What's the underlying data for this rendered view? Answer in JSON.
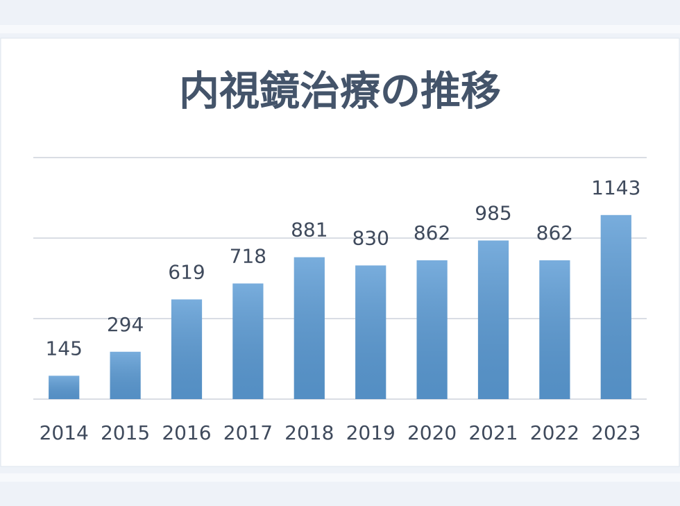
{
  "chart_data": {
    "type": "bar",
    "title": "内視鏡治療の推移",
    "categories": [
      "2014",
      "2015",
      "2016",
      "2017",
      "2018",
      "2019",
      "2020",
      "2021",
      "2022",
      "2023"
    ],
    "values": [
      145,
      294,
      619,
      718,
      881,
      830,
      862,
      985,
      862,
      1143
    ],
    "color": "#5b9bd5",
    "ylim": [
      0,
      1500
    ],
    "yticks": [
      0,
      500,
      1000,
      1500
    ],
    "grid": true
  }
}
